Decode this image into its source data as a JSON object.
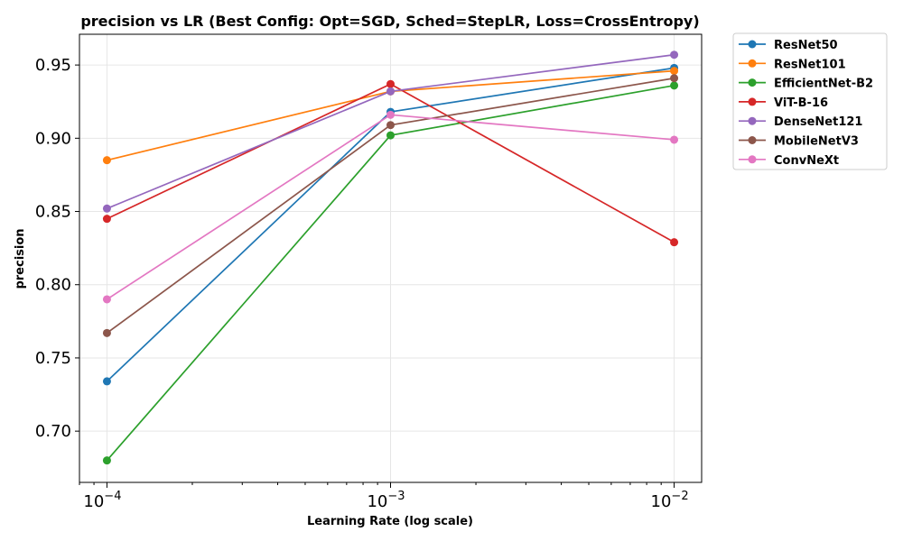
{
  "chart_data": {
    "type": "line",
    "title": "precision vs LR (Best Config: Opt=SGD, Sched=StepLR, Loss=CrossEntropy)",
    "xlabel": "Learning Rate (log scale)",
    "ylabel": "precision",
    "x_scale": "log",
    "x": [
      0.0001,
      0.001,
      0.01
    ],
    "x_tick_labels": [
      {
        "base": "10",
        "exp": "−4"
      },
      {
        "base": "10",
        "exp": "−3"
      },
      {
        "base": "10",
        "exp": "−2"
      }
    ],
    "xlim": [
      8e-05,
      0.0125
    ],
    "ylim": [
      0.665,
      0.971
    ],
    "y_ticks": [
      "0.70",
      "0.75",
      "0.80",
      "0.85",
      "0.90",
      "0.95"
    ],
    "grid": true,
    "legend_position": "outside-top-right",
    "series": [
      {
        "name": "ResNet50",
        "color": "#1f77b4",
        "values": [
          0.734,
          0.918,
          0.948
        ]
      },
      {
        "name": "ResNet101",
        "color": "#ff7f0e",
        "values": [
          0.885,
          0.932,
          0.946
        ]
      },
      {
        "name": "EfficientNet-B2",
        "color": "#2ca02c",
        "values": [
          0.68,
          0.902,
          0.936
        ]
      },
      {
        "name": "ViT-B-16",
        "color": "#d62728",
        "values": [
          0.845,
          0.937,
          0.829
        ]
      },
      {
        "name": "DenseNet121",
        "color": "#9467bd",
        "values": [
          0.852,
          0.932,
          0.957
        ]
      },
      {
        "name": "MobileNetV3",
        "color": "#8c564b",
        "values": [
          0.767,
          0.909,
          0.941
        ]
      },
      {
        "name": "ConvNeXt",
        "color": "#e377c2",
        "values": [
          0.79,
          0.916,
          0.899
        ]
      }
    ]
  }
}
